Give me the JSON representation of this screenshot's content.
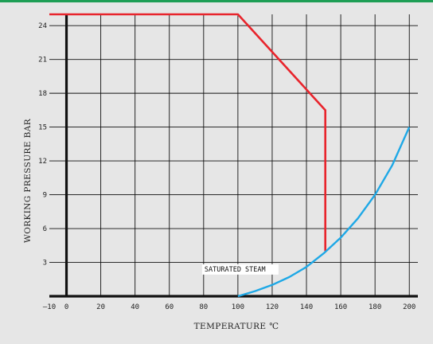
{
  "colors": {
    "background": "#e6e6e6",
    "top_bar": "#1e9e55",
    "grid": "#111111",
    "series_max_rating": "#e8242c",
    "series_saturated_steam": "#1ea8e6"
  },
  "chart_data": {
    "type": "line",
    "xlabel": "TEMPERATURE ℃",
    "ylabel": "WORKING PRESSURE BAR",
    "xlim": [
      -10,
      205
    ],
    "ylim": [
      0,
      25
    ],
    "x_ticks": [
      -10,
      0,
      20,
      40,
      60,
      80,
      100,
      120,
      140,
      160,
      180,
      200
    ],
    "x_tick_labels": [
      "–10",
      "0",
      "20",
      "40",
      "60",
      "80",
      "100",
      "120",
      "140",
      "160",
      "180",
      "200"
    ],
    "y_ticks": [
      3,
      6,
      9,
      12,
      15,
      18,
      21,
      24
    ],
    "y_tick_labels": [
      "3",
      "6",
      "9",
      "12",
      "15",
      "18",
      "21",
      "24"
    ],
    "grid": true,
    "series": [
      {
        "color": "#e8242c",
        "x": [
          -10,
          100,
          142,
          151,
          151
        ],
        "y": [
          25,
          25,
          18,
          16.5,
          4
        ]
      },
      {
        "name": "SATURATED STEAM",
        "color": "#1ea8e6",
        "x": [
          100,
          110,
          120,
          130,
          140,
          150,
          160,
          170,
          180,
          190,
          200
        ],
        "y": [
          0,
          0.45,
          1.0,
          1.7,
          2.6,
          3.8,
          5.2,
          6.9,
          9.0,
          11.6,
          15.0
        ]
      }
    ],
    "annotations": [
      {
        "text": "SATURATED STEAM",
        "x": 100,
        "y": 2.2
      }
    ]
  }
}
